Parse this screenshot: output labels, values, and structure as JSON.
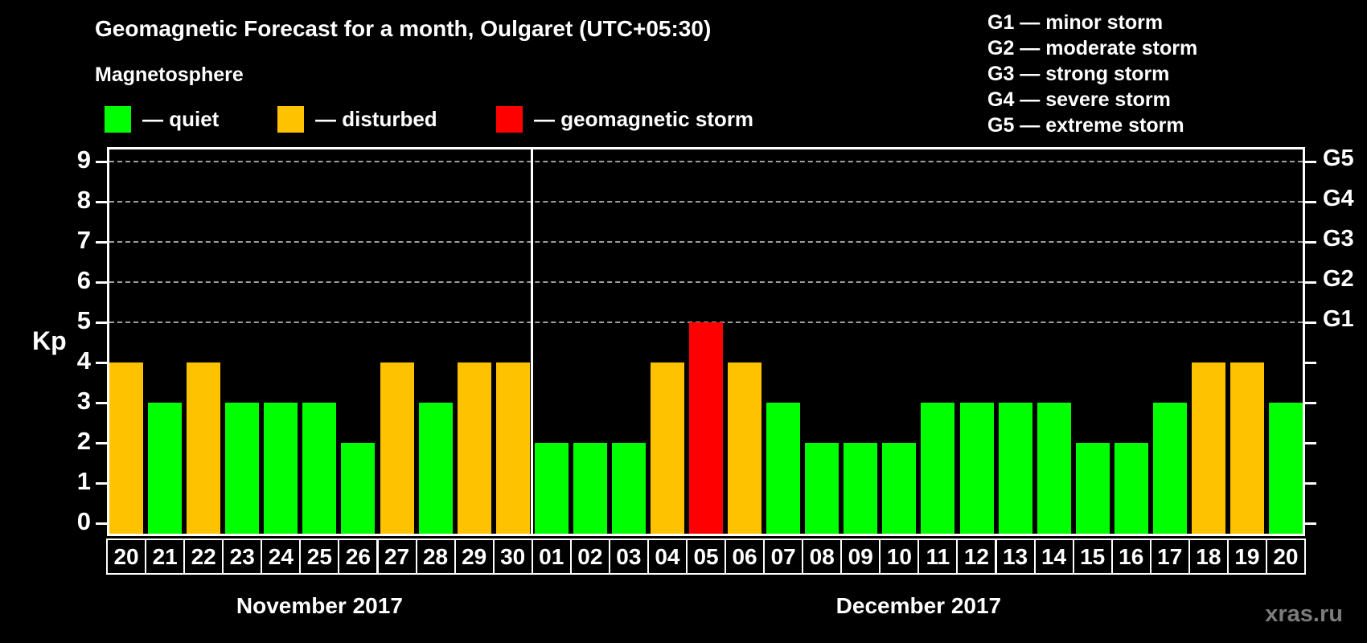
{
  "header": {
    "title": "Geomagnetic Forecast for a month, Oulgaret (UTC+05:30)",
    "subtitle": "Magnetosphere",
    "legend": [
      {
        "status": "quiet",
        "label": "— quiet",
        "color": "#00ff00"
      },
      {
        "status": "disturbed",
        "label": "— disturbed",
        "color": "#ffc200"
      },
      {
        "status": "storm",
        "label": "— geomagnetic storm",
        "color": "#ff0000"
      }
    ],
    "g_scale": [
      "G1 — minor storm",
      "G2 — moderate storm",
      "G3 — strong storm",
      "G4 — severe storm",
      "G5 — extreme storm"
    ]
  },
  "watermark": "xras.ru",
  "chart_data": {
    "type": "bar",
    "title": "Geomagnetic Forecast for a month, Oulgaret (UTC+05:30)",
    "xlabel": "",
    "ylabel": "Kp",
    "ylim": [
      0,
      9.4
    ],
    "yticks": [
      0,
      1,
      2,
      3,
      4,
      5,
      6,
      7,
      8,
      9
    ],
    "gridlines_kp": [
      5,
      6,
      7,
      8,
      9
    ],
    "grid": "dashed horizontal at Kp 5-9 only",
    "legend_position": "top",
    "right_axis_labels": {
      "5": "G1",
      "6": "G2",
      "7": "G3",
      "8": "G4",
      "9": "G5"
    },
    "status_colors": {
      "quiet": "#00ff00",
      "disturbed": "#ffc200",
      "storm": "#ff0000"
    },
    "months": [
      {
        "label": "November 2017",
        "days": [
          {
            "day": "20",
            "kp": 4,
            "status": "disturbed"
          },
          {
            "day": "21",
            "kp": 3,
            "status": "quiet"
          },
          {
            "day": "22",
            "kp": 4,
            "status": "disturbed"
          },
          {
            "day": "23",
            "kp": 3,
            "status": "quiet"
          },
          {
            "day": "24",
            "kp": 3,
            "status": "quiet"
          },
          {
            "day": "25",
            "kp": 3,
            "status": "quiet"
          },
          {
            "day": "26",
            "kp": 2,
            "status": "quiet"
          },
          {
            "day": "27",
            "kp": 4,
            "status": "disturbed"
          },
          {
            "day": "28",
            "kp": 3,
            "status": "quiet"
          },
          {
            "day": "29",
            "kp": 4,
            "status": "disturbed"
          },
          {
            "day": "30",
            "kp": 4,
            "status": "disturbed"
          }
        ]
      },
      {
        "label": "December 2017",
        "days": [
          {
            "day": "01",
            "kp": 2,
            "status": "quiet"
          },
          {
            "day": "02",
            "kp": 2,
            "status": "quiet"
          },
          {
            "day": "03",
            "kp": 2,
            "status": "quiet"
          },
          {
            "day": "04",
            "kp": 4,
            "status": "disturbed"
          },
          {
            "day": "05",
            "kp": 5,
            "status": "storm"
          },
          {
            "day": "06",
            "kp": 4,
            "status": "disturbed"
          },
          {
            "day": "07",
            "kp": 3,
            "status": "quiet"
          },
          {
            "day": "08",
            "kp": 2,
            "status": "quiet"
          },
          {
            "day": "09",
            "kp": 2,
            "status": "quiet"
          },
          {
            "day": "10",
            "kp": 2,
            "status": "quiet"
          },
          {
            "day": "11",
            "kp": 3,
            "status": "quiet"
          },
          {
            "day": "12",
            "kp": 3,
            "status": "quiet"
          },
          {
            "day": "13",
            "kp": 3,
            "status": "quiet"
          },
          {
            "day": "14",
            "kp": 3,
            "status": "quiet"
          },
          {
            "day": "15",
            "kp": 2,
            "status": "quiet"
          },
          {
            "day": "16",
            "kp": 2,
            "status": "quiet"
          },
          {
            "day": "17",
            "kp": 3,
            "status": "quiet"
          },
          {
            "day": "18",
            "kp": 4,
            "status": "disturbed"
          },
          {
            "day": "19",
            "kp": 4,
            "status": "disturbed"
          },
          {
            "day": "20",
            "kp": 3,
            "status": "quiet"
          }
        ]
      }
    ]
  }
}
